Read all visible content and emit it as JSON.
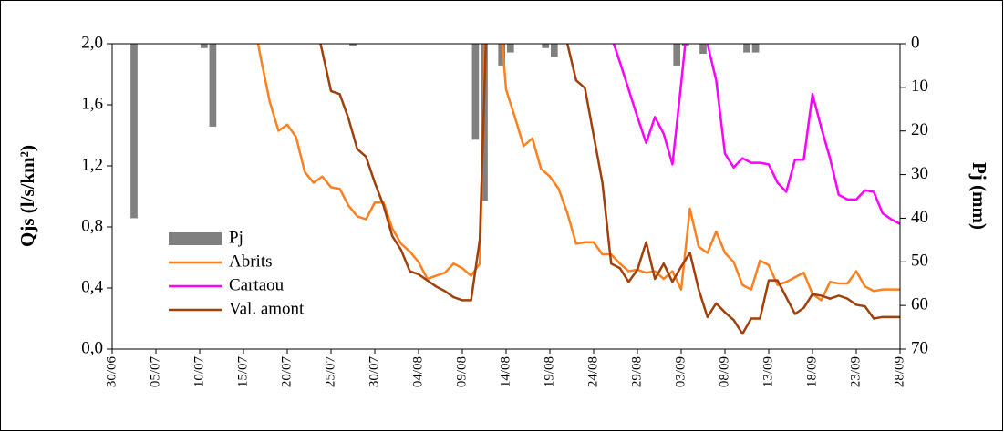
{
  "chart_data": {
    "type": "bar_line",
    "y_label": "Qjs (l/s/km²)",
    "y2_label": "Pj (mm)",
    "categories": [
      "30/06",
      null,
      null,
      null,
      null,
      "05/07",
      null,
      null,
      null,
      null,
      "10/07",
      null,
      null,
      null,
      null,
      "15/07",
      null,
      null,
      null,
      null,
      "20/07",
      null,
      null,
      null,
      null,
      "25/07",
      null,
      null,
      null,
      null,
      "30/07",
      null,
      null,
      null,
      null,
      "04/08",
      null,
      null,
      null,
      null,
      "09/08",
      null,
      null,
      null,
      null,
      "14/08",
      null,
      null,
      null,
      null,
      "19/08",
      null,
      null,
      null,
      null,
      "24/08",
      null,
      null,
      null,
      null,
      "29/08",
      null,
      null,
      null,
      null,
      "03/09",
      null,
      null,
      null,
      null,
      "08/09",
      null,
      null,
      null,
      null,
      "13/09",
      null,
      null,
      null,
      null,
      "18/09",
      null,
      null,
      null,
      null,
      "23/09",
      null,
      null,
      null,
      null,
      "28/09"
    ],
    "ylim": [
      0,
      2.0
    ],
    "yticks": [
      {
        "value": 0,
        "label": "0,0"
      },
      {
        "value": 0.4,
        "label": "0,4"
      },
      {
        "value": 0.8,
        "label": "0,8"
      },
      {
        "value": 1.2,
        "label": "1,2"
      },
      {
        "value": 1.6,
        "label": "1,6"
      },
      {
        "value": 2.0,
        "label": "2,0"
      }
    ],
    "y2lim": [
      0,
      70
    ],
    "y2_reversed": true,
    "y2ticks": [
      0,
      10,
      20,
      30,
      40,
      50,
      60,
      70
    ],
    "legend": "lower left",
    "series": [
      {
        "name": "Pj",
        "type": "bar",
        "axis": "y2",
        "color": "#808080",
        "values": [
          0,
          0,
          40,
          0,
          0,
          0,
          0,
          0,
          0,
          0,
          1,
          19,
          0,
          0,
          0,
          0,
          0,
          0,
          0,
          0,
          0,
          0,
          0,
          0,
          0,
          0,
          0,
          0.5,
          0,
          0,
          0,
          0,
          0,
          0,
          0,
          0,
          0,
          0,
          0,
          0,
          0,
          22,
          36,
          0,
          5,
          2,
          0,
          0,
          0,
          1,
          3,
          0,
          0,
          0,
          0,
          0,
          0,
          0,
          0,
          0,
          0,
          0,
          0,
          0,
          5,
          0.5,
          0,
          2.3,
          0,
          0,
          0,
          0,
          2,
          2,
          0,
          0,
          0,
          0,
          0,
          0,
          0,
          0,
          0,
          0,
          0,
          0,
          0,
          0,
          0,
          0,
          0
        ]
      },
      {
        "name": "Abrits",
        "type": "line",
        "color": "#ff8020",
        "values": [
          null,
          null,
          null,
          null,
          null,
          null,
          null,
          null,
          null,
          null,
          null,
          null,
          null,
          null,
          null,
          null,
          2.2,
          1.9,
          1.62,
          1.43,
          1.47,
          1.39,
          1.16,
          1.09,
          1.13,
          1.06,
          1.05,
          0.94,
          0.87,
          0.85,
          0.96,
          0.96,
          0.79,
          0.69,
          0.64,
          0.57,
          0.46,
          0.48,
          0.5,
          0.56,
          0.53,
          0.48,
          0.56,
          3.0,
          2.4,
          1.7,
          1.52,
          1.33,
          1.38,
          1.18,
          1.13,
          1.05,
          0.89,
          0.69,
          0.7,
          0.7,
          0.62,
          0.62,
          0.56,
          0.51,
          0.52,
          0.5,
          0.51,
          0.46,
          0.51,
          0.39,
          0.92,
          0.67,
          0.63,
          0.77,
          0.63,
          0.57,
          0.42,
          0.39,
          0.58,
          0.55,
          0.42,
          0.44,
          0.47,
          0.5,
          0.36,
          0.32,
          0.44,
          0.43,
          0.43,
          0.51,
          0.41,
          0.38,
          0.39,
          0.39,
          0.39
        ]
      },
      {
        "name": "Cartaou",
        "type": "line",
        "color": "#ff00ff",
        "values": [
          null,
          null,
          null,
          null,
          null,
          null,
          null,
          null,
          null,
          null,
          null,
          null,
          null,
          null,
          null,
          null,
          null,
          null,
          null,
          null,
          null,
          null,
          null,
          null,
          null,
          null,
          null,
          null,
          null,
          null,
          null,
          null,
          null,
          null,
          null,
          null,
          null,
          null,
          null,
          null,
          null,
          null,
          null,
          null,
          null,
          null,
          null,
          null,
          null,
          null,
          null,
          null,
          null,
          null,
          null,
          null,
          null,
          2.05,
          1.88,
          1.7,
          1.52,
          1.35,
          1.52,
          1.41,
          1.21,
          1.74,
          2.3,
          2.3,
          2.0,
          1.76,
          1.28,
          1.19,
          1.25,
          1.22,
          1.22,
          1.21,
          1.09,
          1.03,
          1.24,
          1.24,
          1.67,
          1.45,
          1.25,
          1.01,
          0.98,
          0.98,
          1.04,
          1.03,
          0.89,
          0.85,
          0.82
        ]
      },
      {
        "name": "Val. amont",
        "type": "line",
        "color": "#a0400a",
        "values": [
          null,
          null,
          null,
          null,
          null,
          null,
          null,
          null,
          null,
          null,
          null,
          null,
          null,
          null,
          null,
          null,
          null,
          null,
          null,
          null,
          null,
          null,
          null,
          2.2,
          1.95,
          1.69,
          1.67,
          1.51,
          1.31,
          1.26,
          1.09,
          0.94,
          0.74,
          0.65,
          0.51,
          0.49,
          0.45,
          0.41,
          0.38,
          0.34,
          0.32,
          0.32,
          0.72,
          2.6,
          2.6,
          2.6,
          2.5,
          2.5,
          2.4,
          2.4,
          2.3,
          2.2,
          2.0,
          1.76,
          1.71,
          1.4,
          1.09,
          0.56,
          0.53,
          0.44,
          0.52,
          0.7,
          0.46,
          0.56,
          0.44,
          0.54,
          0.63,
          0.39,
          0.21,
          0.3,
          0.24,
          0.19,
          0.1,
          0.2,
          0.2,
          0.45,
          0.45,
          0.34,
          0.23,
          0.27,
          0.36,
          0.35,
          0.33,
          0.35,
          0.33,
          0.29,
          0.28,
          0.2,
          0.21,
          0.21,
          0.21
        ]
      }
    ]
  }
}
